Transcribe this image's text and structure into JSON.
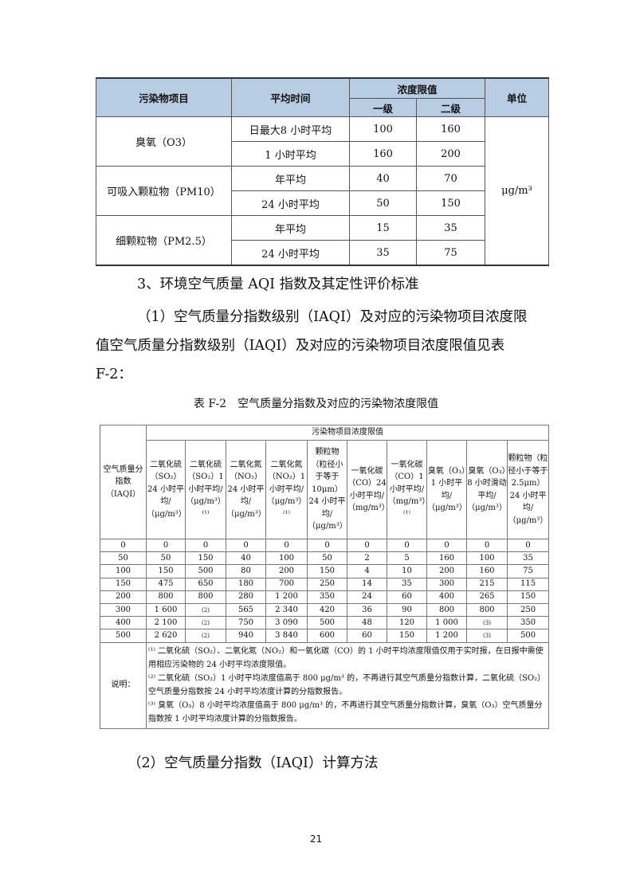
{
  "table1": {
    "headers": {
      "pollutant": "污染物项目",
      "avg_time": "平均时间",
      "limit": "浓度限值",
      "grade1": "一级",
      "grade2": "二级",
      "unit": "单位"
    },
    "unit_value": "μg/m³",
    "groups": [
      {
        "name": "臭氧（O3）",
        "rows": [
          {
            "time": "日最大8 小时平均",
            "g1": "100",
            "g2": "160"
          },
          {
            "time": "1 小时平均",
            "g1": "160",
            "g2": "200"
          }
        ]
      },
      {
        "name": "可吸入颗粒物（PM10）",
        "rows": [
          {
            "time": "年平均",
            "g1": "40",
            "g2": "70"
          },
          {
            "time": "24 小时平均",
            "g1": "50",
            "g2": "150"
          }
        ]
      },
      {
        "name": "细颗粒物（PM2.5）",
        "rows": [
          {
            "time": "年平均",
            "g1": "15",
            "g2": "35"
          },
          {
            "time": "24 小时平均",
            "g1": "35",
            "g2": "75"
          }
        ]
      }
    ]
  },
  "section_heading": "3、环境空气质量 AQI 指数及其定性评价标准",
  "paragraph": [
    "（1）空气质量分指数级别（IAQI）及对应的污染物项目浓度限",
    "值空气质量分指数级别（IAQI）及对应的污染物项目浓度限值见表",
    "F-2："
  ],
  "table2_caption": "表 F-2　空气质量分指数及对应的污染物浓度限值",
  "table2": {
    "row_header": "空气质量分指数（IAQI）",
    "group_header": "污染物项目浓度限值",
    "columns": [
      "二氧化硫（SO₂）24 小时平均/（μg/m³）",
      "二氧化硫（SO₂）1 小时平均/（μg/m³）⁽¹⁾",
      "二氧化氮（NO₂）24 小时平均/（μg/m³）",
      "二氧化氮（NO₂）1 小时平均/（μg/m³）⁽¹⁾",
      "颗粒物（粒径小于等于10μm）24 小时平均/（μg/m³）",
      "一氧化碳（CO）24 小时平均/（mg/m³）",
      "一氧化碳（CO）1 小时平均/（mg/m³）⁽¹⁾",
      "臭氧（O₃）1 小时平均/（μg/m³）",
      "臭氧（O₃）8 小时滑动平均/（μg/m³）",
      "颗粒物（粒径小于等于2.5μm）24 小时平均/（μg/m³）"
    ],
    "rows": [
      [
        "0",
        "0",
        "0",
        "0",
        "0",
        "0",
        "0",
        "0",
        "0",
        "0",
        "0"
      ],
      [
        "50",
        "50",
        "150",
        "40",
        "100",
        "50",
        "2",
        "5",
        "160",
        "100",
        "35"
      ],
      [
        "100",
        "150",
        "500",
        "80",
        "200",
        "150",
        "4",
        "10",
        "200",
        "160",
        "75"
      ],
      [
        "150",
        "475",
        "650",
        "180",
        "700",
        "250",
        "14",
        "35",
        "300",
        "215",
        "115"
      ],
      [
        "200",
        "800",
        "800",
        "280",
        "1 200",
        "350",
        "24",
        "60",
        "400",
        "265",
        "150"
      ],
      [
        "300",
        "1 600",
        "(2)",
        "565",
        "2 340",
        "420",
        "36",
        "90",
        "800",
        "800",
        "250"
      ],
      [
        "400",
        "2 100",
        "(2)",
        "750",
        "3 090",
        "500",
        "48",
        "120",
        "1 000",
        "(3)",
        "350"
      ],
      [
        "500",
        "2 620",
        "(2)",
        "940",
        "3 840",
        "600",
        "60",
        "150",
        "1 200",
        "(3)",
        "500"
      ]
    ],
    "notes_label": "说明：",
    "notes": [
      "⁽¹⁾ 二氧化硫（SO₂）、二氧化氮（NO₂）和一氧化碳（CO）的 1 小时平均浓度限值仅用于实时报，在日报中需使用相应污染物的 24 小时平均浓度限值。",
      "⁽²⁾ 二氧化硫（SO₂）1 小时平均浓度值高于 800 μg/m³ 的，不再进行其空气质量分指数计算，二氧化硫（SO₂）空气质量分指数按 24 小时平均浓度计算的分指数报告。",
      "⁽³⁾ 臭氧（O₃）8 小时平均浓度值高于 800 μg/m³ 的，不再进行其空气质量分指数计算，臭氧（O₃）空气质量分指数按 1 小时平均浓度计算的分指数报告。"
    ]
  },
  "subheading": "（2）空气质量分指数（IAQI）计算方法",
  "page_number": "21"
}
